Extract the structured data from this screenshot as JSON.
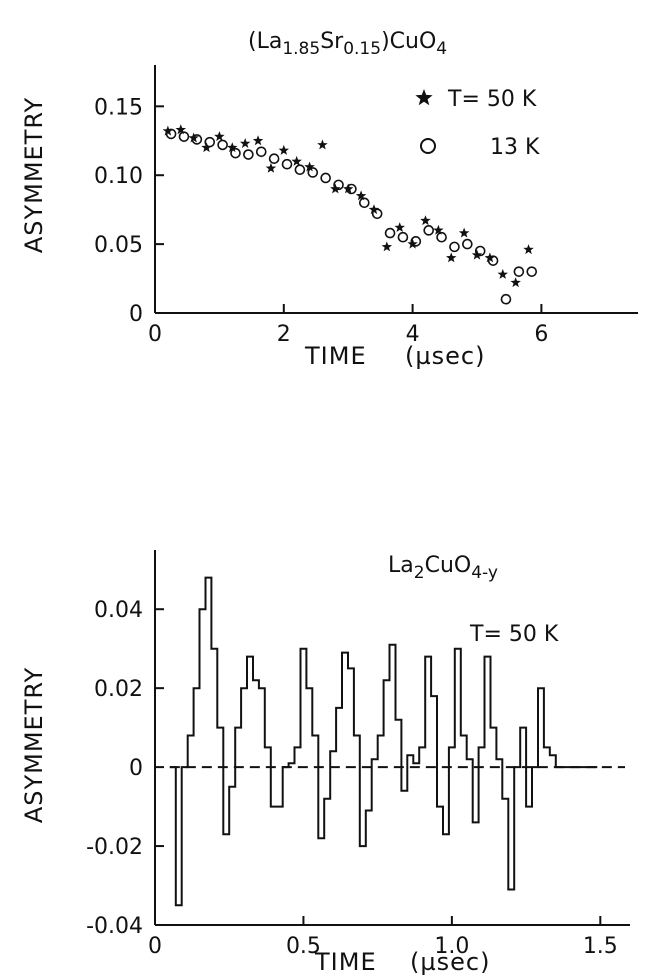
{
  "chart_data": [
    {
      "type": "scatter",
      "title_parts": [
        {
          "text": "(La",
          "style": "normal"
        },
        {
          "text": "1.85",
          "style": "sub"
        },
        {
          "text": "Sr",
          "style": "normal"
        },
        {
          "text": "0.15",
          "style": "sub"
        },
        {
          "text": ")CuO",
          "style": "normal"
        },
        {
          "text": "4",
          "style": "sub"
        }
      ],
      "xlabel": "TIME",
      "xunit": "(µsec)",
      "ylabel": "ASYMMETRY",
      "xlim": [
        0,
        7.5
      ],
      "ylim": [
        0,
        0.18
      ],
      "xticks": [
        0,
        2,
        4,
        6
      ],
      "xtick_labels": [
        "0",
        "2",
        "4",
        "6"
      ],
      "yticks": [
        0,
        0.05,
        0.1,
        0.15
      ],
      "ytick_labels": [
        "0",
        "0.05",
        "0.10",
        "0.15"
      ],
      "legend": {
        "placement": "top-right",
        "entries": [
          {
            "marker": "star",
            "label": "T= 50 K"
          },
          {
            "marker": "circle",
            "label": "13 K"
          }
        ]
      },
      "series": [
        {
          "name": "T= 50 K",
          "marker": "star",
          "x": [
            0.2,
            0.4,
            0.6,
            0.8,
            1.0,
            1.2,
            1.4,
            1.6,
            1.8,
            2.0,
            2.2,
            2.4,
            2.6,
            2.8,
            3.0,
            3.2,
            3.4,
            3.6,
            3.8,
            4.0,
            4.2,
            4.4,
            4.6,
            4.8,
            5.0,
            5.2,
            5.4,
            5.6,
            5.8
          ],
          "y": [
            0.132,
            0.133,
            0.127,
            0.12,
            0.128,
            0.12,
            0.123,
            0.125,
            0.105,
            0.118,
            0.11,
            0.106,
            0.122,
            0.09,
            0.09,
            0.085,
            0.075,
            0.048,
            0.062,
            0.05,
            0.067,
            0.06,
            0.04,
            0.058,
            0.042,
            0.04,
            0.028,
            0.022,
            0.046
          ]
        },
        {
          "name": "13 K",
          "marker": "circle",
          "x": [
            0.25,
            0.45,
            0.65,
            0.85,
            1.05,
            1.25,
            1.45,
            1.65,
            1.85,
            2.05,
            2.25,
            2.45,
            2.65,
            2.85,
            3.05,
            3.25,
            3.45,
            3.65,
            3.85,
            4.05,
            4.25,
            4.45,
            4.65,
            4.85,
            5.05,
            5.25,
            5.45,
            5.65,
            5.85
          ],
          "y": [
            0.13,
            0.128,
            0.126,
            0.124,
            0.122,
            0.116,
            0.115,
            0.117,
            0.112,
            0.108,
            0.104,
            0.102,
            0.098,
            0.093,
            0.09,
            0.08,
            0.072,
            0.058,
            0.055,
            0.052,
            0.06,
            0.055,
            0.048,
            0.05,
            0.045,
            0.038,
            0.01,
            0.03,
            0.03
          ]
        }
      ]
    },
    {
      "type": "line",
      "title_parts": [
        {
          "text": "La",
          "style": "normal"
        },
        {
          "text": "2",
          "style": "sub"
        },
        {
          "text": "CuO",
          "style": "normal"
        },
        {
          "text": "4-y",
          "style": "sub"
        }
      ],
      "annotation": "T= 50 K",
      "xlabel": "TIME",
      "xunit": "(µsec)",
      "ylabel": "ASYMMETRY",
      "xlim": [
        0,
        1.6
      ],
      "ylim": [
        -0.04,
        0.055
      ],
      "xticks": [
        0,
        0.5,
        1.0,
        1.5
      ],
      "xtick_labels": [
        "0",
        "0.5",
        "1.0",
        "1.5"
      ],
      "yticks": [
        -0.04,
        -0.02,
        0,
        0.02,
        0.04
      ],
      "ytick_labels": [
        "-0.04",
        "-0.02",
        "0",
        "0.02",
        "0.04"
      ],
      "baseline": {
        "y": 0,
        "style": "dashed"
      },
      "series": [
        {
          "name": "",
          "style": "step",
          "x": [
            0.05,
            0.07,
            0.09,
            0.11,
            0.13,
            0.15,
            0.17,
            0.19,
            0.21,
            0.23,
            0.25,
            0.27,
            0.29,
            0.31,
            0.33,
            0.35,
            0.37,
            0.39,
            0.41,
            0.43,
            0.45,
            0.47,
            0.49,
            0.51,
            0.53,
            0.55,
            0.57,
            0.59,
            0.61,
            0.63,
            0.65,
            0.67,
            0.69,
            0.71,
            0.73,
            0.75,
            0.77,
            0.79,
            0.81,
            0.83,
            0.85,
            0.87,
            0.89,
            0.91,
            0.93,
            0.95,
            0.97,
            0.99,
            1.01,
            1.03,
            1.05,
            1.07,
            1.09,
            1.11,
            1.13,
            1.15,
            1.17,
            1.19,
            1.21,
            1.23,
            1.25,
            1.27,
            1.29,
            1.31,
            1.33,
            1.35,
            1.37,
            1.39,
            1.41,
            1.43,
            1.45,
            1.47
          ],
          "y": [
            0.0,
            -0.035,
            0.0,
            0.008,
            0.02,
            0.04,
            0.048,
            0.03,
            0.01,
            -0.017,
            -0.005,
            0.01,
            0.02,
            0.028,
            0.022,
            0.02,
            0.005,
            -0.01,
            -0.01,
            0.0,
            0.001,
            0.005,
            0.03,
            0.02,
            0.008,
            -0.018,
            -0.008,
            0.004,
            0.015,
            0.029,
            0.025,
            0.008,
            -0.02,
            -0.011,
            0.002,
            0.008,
            0.022,
            0.031,
            0.012,
            -0.006,
            0.003,
            0.001,
            0.005,
            0.028,
            0.018,
            -0.01,
            -0.017,
            0.005,
            0.03,
            0.008,
            0.002,
            -0.014,
            0.005,
            0.028,
            0.01,
            0.002,
            -0.008,
            -0.031,
            0.0,
            0.01,
            -0.01,
            0.0,
            0.02,
            0.005,
            0.003,
            0.0,
            0.0,
            0.0,
            0.0,
            0.0,
            0.0,
            0.0
          ]
        }
      ]
    }
  ]
}
